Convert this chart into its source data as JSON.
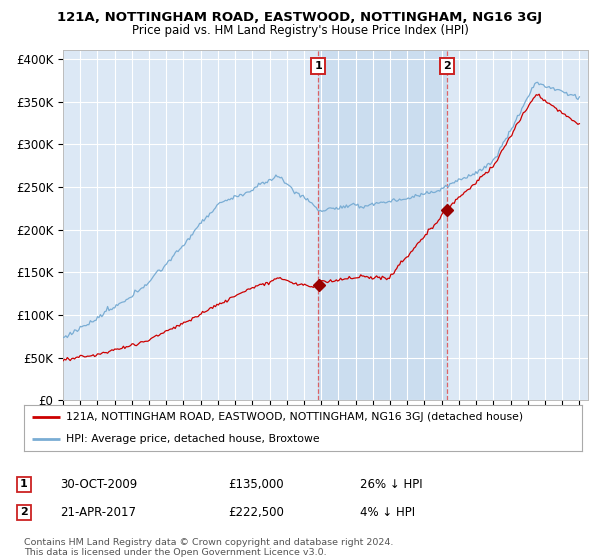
{
  "title": "121A, NOTTINGHAM ROAD, EASTWOOD, NOTTINGHAM, NG16 3GJ",
  "subtitle": "Price paid vs. HM Land Registry's House Price Index (HPI)",
  "background_color": "#ffffff",
  "plot_bg_color": "#dce8f5",
  "plot_bg_color_highlighted": "#ccddf0",
  "grid_color": "#ffffff",
  "ylim": [
    0,
    410000
  ],
  "yticks": [
    0,
    50000,
    100000,
    150000,
    200000,
    250000,
    300000,
    350000,
    400000
  ],
  "ytick_labels": [
    "£0",
    "£50K",
    "£100K",
    "£150K",
    "£200K",
    "£250K",
    "£300K",
    "£350K",
    "£400K"
  ],
  "hpi_color": "#7aadd4",
  "price_color": "#cc0000",
  "marker_color": "#990000",
  "sale1_date": "30-OCT-2009",
  "sale1_price": 135000,
  "sale1_label": "26% ↓ HPI",
  "sale2_date": "21-APR-2017",
  "sale2_price": 222500,
  "sale2_label": "4% ↓ HPI",
  "legend_line1": "121A, NOTTINGHAM ROAD, EASTWOOD, NOTTINGHAM, NG16 3GJ (detached house)",
  "legend_line2": "HPI: Average price, detached house, Broxtowe",
  "footer1": "Contains HM Land Registry data © Crown copyright and database right 2024.",
  "footer2": "This data is licensed under the Open Government Licence v3.0.",
  "xstart_year": 1995,
  "xend_year": 2025,
  "sale1_x": 2009.833,
  "sale2_x": 2017.333
}
